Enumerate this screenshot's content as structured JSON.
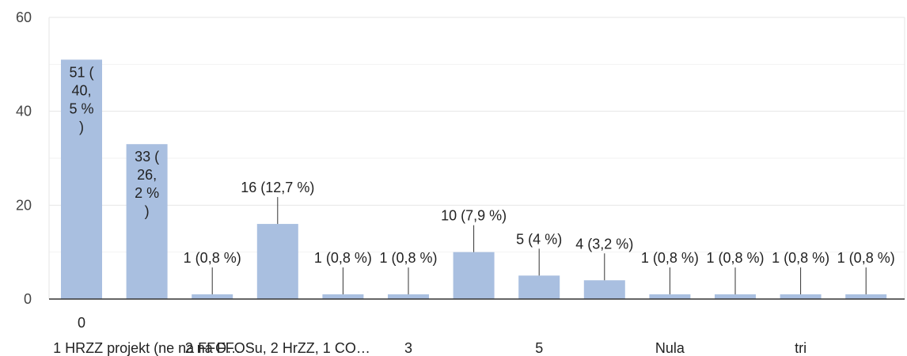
{
  "chart_data": {
    "type": "bar",
    "categories": [
      "0",
      "1 HRZZ projekt (ne na FFO…",
      "",
      "2 na FFOSu, 2 HrZZ, 1 CO…",
      "",
      "3",
      "",
      "5",
      "",
      "Nula",
      "",
      "tri",
      ""
    ],
    "values": [
      51,
      33,
      1,
      16,
      1,
      1,
      10,
      5,
      4,
      1,
      1,
      1,
      1
    ],
    "labels": [
      [
        "51 (",
        "40,",
        "5 %",
        ")"
      ],
      [
        "33 (",
        "26,",
        "2 %",
        ")"
      ],
      [
        "1 (0,8 %)"
      ],
      [
        "16 (12,7 %)"
      ],
      [
        "1 (0,8 %)"
      ],
      [
        "1 (0,8 %)"
      ],
      [
        "10 (7,9 %)"
      ],
      [
        "5 (4 %)"
      ],
      [
        "4 (3,2 %)"
      ],
      [
        "1 (0,8 %)"
      ],
      [
        "1 (0,8 %)"
      ],
      [
        "1 (0,8 %)"
      ],
      [
        "1 (0,8 %)"
      ]
    ],
    "yticks": [
      "0",
      "20",
      "40",
      "60"
    ],
    "ylim": [
      0,
      60
    ],
    "grid": true,
    "bar_color": "#a9bfe0",
    "title": "",
    "xlabel": "",
    "ylabel": ""
  }
}
